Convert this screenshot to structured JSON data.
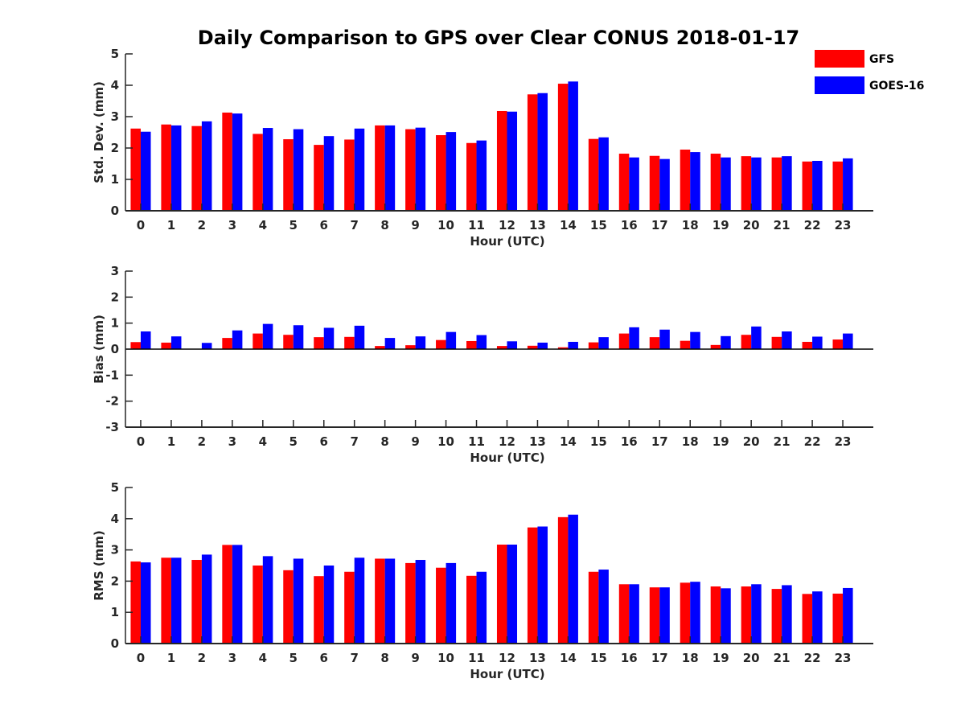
{
  "title": "Daily Comparison to GPS over Clear CONUS 2018-01-17",
  "colors": {
    "GFS": "#ff0000",
    "GOES-16": "#0000ff",
    "axis": "#262626"
  },
  "legend": {
    "items": [
      {
        "name": "GFS",
        "color": "#ff0000"
      },
      {
        "name": "GOES-16",
        "color": "#0000ff"
      }
    ],
    "placement": "top-right"
  },
  "chart_data": [
    {
      "type": "bar",
      "ylabel": "Std. Dev. (mm)",
      "xlabel": "Hour (UTC)",
      "ylim": [
        0,
        5
      ],
      "yticks": [
        "0",
        "1",
        "2",
        "3",
        "4",
        "5"
      ],
      "categories": [
        "0",
        "1",
        "2",
        "3",
        "4",
        "5",
        "6",
        "7",
        "8",
        "9",
        "10",
        "11",
        "12",
        "13",
        "14",
        "15",
        "16",
        "17",
        "18",
        "19",
        "20",
        "21",
        "22",
        "23"
      ],
      "series": [
        {
          "name": "GFS",
          "values": [
            2.62,
            2.75,
            2.7,
            3.13,
            2.45,
            2.28,
            2.1,
            2.27,
            2.72,
            2.6,
            2.41,
            2.16,
            3.18,
            3.71,
            4.05,
            2.29,
            1.82,
            1.75,
            1.95,
            1.82,
            1.74,
            1.7,
            1.57,
            1.57
          ]
        },
        {
          "name": "GOES-16",
          "values": [
            2.52,
            2.72,
            2.85,
            3.1,
            2.64,
            2.6,
            2.38,
            2.62,
            2.72,
            2.65,
            2.51,
            2.24,
            3.16,
            3.75,
            4.12,
            2.34,
            1.7,
            1.65,
            1.87,
            1.7,
            1.7,
            1.74,
            1.59,
            1.67
          ]
        }
      ]
    },
    {
      "type": "bar",
      "ylabel": "Bias (mm)",
      "xlabel": "Hour (UTC)",
      "ylim": [
        -3,
        3
      ],
      "yticks": [
        "-3",
        "-2",
        "-1",
        "0",
        "1",
        "2",
        "3"
      ],
      "categories": [
        "0",
        "1",
        "2",
        "3",
        "4",
        "5",
        "6",
        "7",
        "8",
        "9",
        "10",
        "11",
        "12",
        "13",
        "14",
        "15",
        "16",
        "17",
        "18",
        "19",
        "20",
        "21",
        "22",
        "23"
      ],
      "series": [
        {
          "name": "GFS",
          "values": [
            0.27,
            0.25,
            0.0,
            0.43,
            0.6,
            0.55,
            0.46,
            0.47,
            0.12,
            0.15,
            0.35,
            0.31,
            0.12,
            0.13,
            0.07,
            0.26,
            0.6,
            0.46,
            0.32,
            0.16,
            0.55,
            0.47,
            0.28,
            0.37
          ]
        },
        {
          "name": "GOES-16",
          "values": [
            0.68,
            0.49,
            0.24,
            0.72,
            0.97,
            0.92,
            0.82,
            0.9,
            0.43,
            0.49,
            0.66,
            0.54,
            0.3,
            0.25,
            0.28,
            0.46,
            0.84,
            0.75,
            0.66,
            0.5,
            0.87,
            0.68,
            0.48,
            0.6
          ]
        }
      ]
    },
    {
      "type": "bar",
      "ylabel": "RMS (mm)",
      "xlabel": "Hour (UTC)",
      "ylim": [
        0,
        5
      ],
      "yticks": [
        "0",
        "1",
        "2",
        "3",
        "4",
        "5"
      ],
      "categories": [
        "0",
        "1",
        "2",
        "3",
        "4",
        "5",
        "6",
        "7",
        "8",
        "9",
        "10",
        "11",
        "12",
        "13",
        "14",
        "15",
        "16",
        "17",
        "18",
        "19",
        "20",
        "21",
        "22",
        "23"
      ],
      "series": [
        {
          "name": "GFS",
          "values": [
            2.63,
            2.75,
            2.68,
            3.16,
            2.5,
            2.35,
            2.16,
            2.3,
            2.72,
            2.58,
            2.43,
            2.17,
            3.17,
            3.72,
            4.05,
            2.3,
            1.9,
            1.8,
            1.95,
            1.83,
            1.83,
            1.75,
            1.59,
            1.6
          ]
        },
        {
          "name": "GOES-16",
          "values": [
            2.6,
            2.75,
            2.85,
            3.16,
            2.8,
            2.72,
            2.5,
            2.75,
            2.72,
            2.68,
            2.58,
            2.3,
            3.17,
            3.75,
            4.13,
            2.37,
            1.9,
            1.8,
            1.98,
            1.77,
            1.9,
            1.87,
            1.67,
            1.78
          ]
        }
      ]
    }
  ]
}
